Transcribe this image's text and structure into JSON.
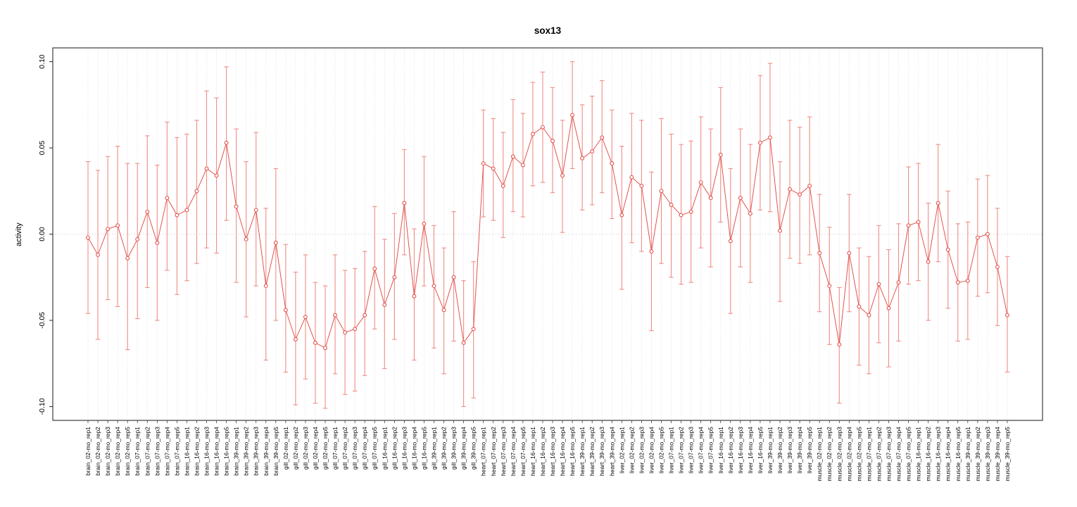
{
  "figure": {
    "background": "#ffffff",
    "plot_border_color": "#2b2b2b",
    "gridline_color": "#d8d8d8",
    "zero_line_color": "#c9c9c9"
  },
  "chart_data": {
    "type": "scatter",
    "title": "sox13",
    "xlabel": "",
    "ylabel": "activity",
    "ylim": [
      -0.1,
      0.1
    ],
    "ytick_values": [
      -0.1,
      -0.05,
      0.0,
      0.05,
      0.1
    ],
    "ytick_labels": [
      "-0.10",
      "-0.05",
      "0.00",
      "0.05",
      "0.10"
    ],
    "grid": "vertical dotted gridline per category; dotted horizontal line at y=0",
    "legend": "none",
    "error_bars": true,
    "point_color": "#e2534e",
    "line_color": "#e2534e",
    "errorbar_color": "#ef8d85",
    "categories": [
      "brain_02-mo_rep1",
      "brain_02-mo_rep2",
      "brain_02-mo_rep3",
      "brain_02-mo_rep4",
      "brain_02-mo_rep5",
      "brain_07-mo_rep1",
      "brain_07-mo_rep2",
      "brain_07-mo_rep3",
      "brain_07-mo_rep4",
      "brain_07-mo_rep5",
      "brain_16-mo_rep1",
      "brain_16-mo_rep2",
      "brain_16-mo_rep3",
      "brain_16-mo_rep4",
      "brain_16-mo_rep5",
      "brain_39-mo_rep1",
      "brain_39-mo_rep2",
      "brain_39-mo_rep3",
      "brain_39-mo_rep4",
      "brain_39-mo_rep5",
      "gill_02-mo_rep1",
      "gill_02-mo_rep2",
      "gill_02-mo_rep3",
      "gill_02-mo_rep4",
      "gill_02-mo_rep5",
      "gill_07-mo_rep1",
      "gill_07-mo_rep2",
      "gill_07-mo_rep3",
      "gill_07-mo_rep4",
      "gill_07-mo_rep5",
      "gill_16-mo_rep1",
      "gill_16-mo_rep2",
      "gill_16-mo_rep3",
      "gill_16-mo_rep4",
      "gill_16-mo_rep5",
      "gill_39-mo_rep1",
      "gill_39-mo_rep2",
      "gill_39-mo_rep3",
      "gill_39-mo_rep4",
      "gill_39-mo_rep5",
      "heart_07-mo_rep1",
      "heart_07-mo_rep2",
      "heart_07-mo_rep3",
      "heart_07-mo_rep4",
      "heart_07-mo_rep5",
      "heart_16-mo_rep1",
      "heart_16-mo_rep2",
      "heart_16-mo_rep3",
      "heart_16-mo_rep4",
      "heart_16-mo_rep5",
      "heart_39-mo_rep1",
      "heart_39-mo_rep2",
      "heart_39-mo_rep3",
      "heart_39-mo_rep4",
      "liver_02-mo_rep1",
      "liver_02-mo_rep2",
      "liver_02-mo_rep3",
      "liver_02-mo_rep4",
      "liver_02-mo_rep5",
      "liver_07-mo_rep1",
      "liver_07-mo_rep2",
      "liver_07-mo_rep3",
      "liver_07-mo_rep4",
      "liver_07-mo_rep5",
      "liver_16-mo_rep1",
      "liver_16-mo_rep2",
      "liver_16-mo_rep3",
      "liver_16-mo_rep4",
      "liver_16-mo_rep5",
      "liver_39-mo_rep1",
      "liver_39-mo_rep2",
      "liver_39-mo_rep3",
      "liver_39-mo_rep4",
      "liver_39-mo_rep5",
      "muscle_02-mo_rep1",
      "muscle_02-mo_rep2",
      "muscle_02-mo_rep3",
      "muscle_02-mo_rep4",
      "muscle_02-mo_rep5",
      "muscle_07-mo_rep1",
      "muscle_07-mo_rep2",
      "muscle_07-mo_rep3",
      "muscle_07-mo_rep4",
      "muscle_07-mo_rep5",
      "muscle_16-mo_rep1",
      "muscle_16-mo_rep2",
      "muscle_16-mo_rep3",
      "muscle_16-mo_rep4",
      "muscle_16-mo_rep5",
      "muscle_39-mo_rep1",
      "muscle_39-mo_rep2",
      "muscle_39-mo_rep3",
      "muscle_39-mo_rep4",
      "muscle_39-mo_rep5"
    ],
    "series": [
      {
        "name": "activity",
        "values": [
          -0.002,
          -0.012,
          0.003,
          0.005,
          -0.014,
          -0.003,
          0.013,
          -0.005,
          0.021,
          0.011,
          0.014,
          0.025,
          0.038,
          0.034,
          0.053,
          0.016,
          -0.003,
          0.014,
          -0.03,
          -0.005,
          -0.044,
          -0.061,
          -0.048,
          -0.063,
          -0.066,
          -0.047,
          -0.057,
          -0.055,
          -0.047,
          -0.02,
          -0.041,
          -0.025,
          0.018,
          -0.036,
          0.006,
          -0.03,
          -0.044,
          -0.025,
          -0.063,
          -0.055,
          0.041,
          0.038,
          0.028,
          0.045,
          0.04,
          0.058,
          0.062,
          0.054,
          0.034,
          0.069,
          0.044,
          0.048,
          0.056,
          0.041,
          0.011,
          0.033,
          0.028,
          -0.01,
          0.025,
          0.017,
          0.011,
          0.013,
          0.03,
          0.021,
          0.046,
          -0.004,
          0.021,
          0.012,
          0.053,
          0.056,
          0.002,
          0.026,
          0.023,
          0.028,
          -0.011,
          -0.03,
          -0.064,
          -0.011,
          -0.042,
          -0.047,
          -0.029,
          -0.043,
          -0.028,
          0.005,
          0.007,
          -0.016,
          0.018,
          -0.009,
          -0.028,
          -0.027,
          -0.002,
          0.0,
          -0.019,
          -0.047
        ],
        "lower": [
          -0.046,
          -0.061,
          -0.038,
          -0.042,
          -0.067,
          -0.049,
          -0.031,
          -0.05,
          -0.021,
          -0.035,
          -0.027,
          -0.017,
          -0.008,
          -0.011,
          0.008,
          -0.028,
          -0.048,
          -0.03,
          -0.073,
          -0.05,
          -0.08,
          -0.099,
          -0.084,
          -0.098,
          -0.101,
          -0.081,
          -0.093,
          -0.091,
          -0.082,
          -0.055,
          -0.078,
          -0.061,
          -0.012,
          -0.073,
          -0.03,
          -0.066,
          -0.081,
          -0.062,
          -0.1,
          -0.095,
          0.01,
          0.008,
          -0.002,
          0.013,
          0.01,
          0.028,
          0.03,
          0.024,
          0.001,
          0.038,
          0.014,
          0.017,
          0.024,
          0.009,
          -0.032,
          -0.005,
          -0.01,
          -0.056,
          -0.017,
          -0.025,
          -0.029,
          -0.028,
          -0.008,
          -0.019,
          0.007,
          -0.046,
          -0.019,
          -0.028,
          0.014,
          0.013,
          -0.039,
          -0.014,
          -0.017,
          -0.012,
          -0.045,
          -0.064,
          -0.098,
          -0.045,
          -0.076,
          -0.081,
          -0.063,
          -0.077,
          -0.062,
          -0.029,
          -0.027,
          -0.05,
          -0.016,
          -0.043,
          -0.062,
          -0.061,
          -0.036,
          -0.034,
          -0.053,
          -0.08
        ],
        "upper": [
          0.042,
          0.037,
          0.045,
          0.051,
          0.041,
          0.041,
          0.057,
          0.04,
          0.065,
          0.056,
          0.058,
          0.066,
          0.083,
          0.079,
          0.097,
          0.061,
          0.042,
          0.059,
          0.015,
          0.038,
          -0.006,
          -0.022,
          -0.012,
          -0.028,
          -0.03,
          -0.012,
          -0.021,
          -0.02,
          -0.01,
          0.016,
          -0.003,
          0.012,
          0.049,
          0.003,
          0.045,
          0.005,
          -0.008,
          0.013,
          -0.027,
          -0.016,
          0.072,
          0.067,
          0.059,
          0.078,
          0.07,
          0.088,
          0.094,
          0.085,
          0.066,
          0.1,
          0.075,
          0.08,
          0.089,
          0.072,
          0.051,
          0.07,
          0.066,
          0.036,
          0.067,
          0.058,
          0.052,
          0.054,
          0.068,
          0.061,
          0.085,
          0.038,
          0.061,
          0.052,
          0.092,
          0.099,
          0.042,
          0.066,
          0.062,
          0.068,
          0.023,
          0.004,
          -0.031,
          0.023,
          -0.008,
          -0.013,
          0.005,
          -0.009,
          0.006,
          0.039,
          0.041,
          0.018,
          0.052,
          0.025,
          0.006,
          0.007,
          0.032,
          0.034,
          0.015,
          -0.013
        ]
      }
    ]
  }
}
